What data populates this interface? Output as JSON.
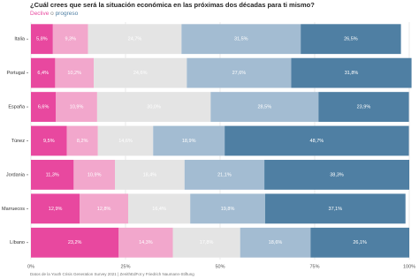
{
  "chart_data": {
    "type": "stacked-bar-horizontal",
    "title": "¿Cuál crees que será la situación económica en las próximas dos décadas para ti mismo?",
    "subtitle_parts": [
      "Declive",
      "o",
      "progreso"
    ],
    "source": "Datos de la Youth Crisis Generation Survey 2021 | ZenithEdFot y Friedrich Naumann-Stiftung",
    "categories": [
      "Italia",
      "Portugal",
      "España",
      "Túnez",
      "Jordania",
      "Marruecos",
      "Líbano"
    ],
    "series": [
      {
        "color": "#e8489f",
        "values": [
          5.8,
          6.4,
          6.6,
          9.5,
          11.3,
          12.9,
          23.2
        ],
        "value_labels": [
          "5,8%",
          "6,4%",
          "6,6%",
          "9,5%",
          "11,3%",
          "12,9%",
          "23,2%"
        ]
      },
      {
        "color": "#f2a7cc",
        "values": [
          9.3,
          10.2,
          10.9,
          8.2,
          10.9,
          12.8,
          14.3
        ],
        "value_labels": [
          "9,3%",
          "10,2%",
          "10,9%",
          "8,2%",
          "10,9%",
          "12,8%",
          "14,3%"
        ]
      },
      {
        "color": "#e4e4e4",
        "values": [
          24.7,
          24.6,
          30.0,
          14.6,
          18.4,
          16.4,
          17.8
        ],
        "value_labels": [
          "24,7%",
          "24,6%",
          "30,0%",
          "14,6%",
          "18,4%",
          "16,4%",
          "17,8%"
        ]
      },
      {
        "color": "#a3bcd2",
        "values": [
          31.5,
          27.6,
          28.5,
          18.9,
          21.1,
          19.8,
          18.6
        ],
        "value_labels": [
          "31,5%",
          "27,6%",
          "28,5%",
          "18,9%",
          "21,1%",
          "19,8%",
          "18,6%"
        ]
      },
      {
        "color": "#4f7fa3",
        "values": [
          26.5,
          31.8,
          23.9,
          48.7,
          38.3,
          37.1,
          26.1
        ],
        "value_labels": [
          "26,5%",
          "31,8%",
          "23,9%",
          "48,7%",
          "38,3%",
          "37,1%",
          "26,1%"
        ]
      }
    ],
    "xlim": [
      0,
      100
    ],
    "xticks": [
      {
        "value": 0,
        "label": "0%"
      },
      {
        "value": 25,
        "label": "25%"
      },
      {
        "value": 50,
        "label": "50%"
      },
      {
        "value": 75,
        "label": "75%"
      },
      {
        "value": 100,
        "label": "100%"
      }
    ],
    "grid": true
  }
}
